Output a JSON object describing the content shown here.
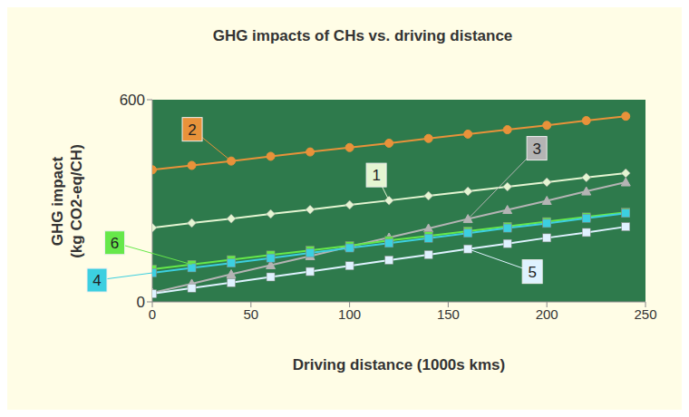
{
  "chart_data": {
    "type": "line",
    "title": "GHG impacts of CHs vs. driving distance",
    "x_label": "Driving distance (1000s kms)",
    "y_label": "GHG impact\n(kg CO2-eq/CH)",
    "x": [
      0,
      20,
      40,
      60,
      80,
      100,
      120,
      140,
      160,
      180,
      200,
      220,
      240
    ],
    "xlim": [
      0,
      250
    ],
    "xticks": [
      0,
      50,
      100,
      150,
      200,
      250
    ],
    "ylim": [
      0,
      600
    ],
    "yticks": [
      0,
      600
    ],
    "grid": false,
    "series": [
      {
        "name": "2",
        "color": "#e8923a",
        "marker": "circle",
        "values": [
          392,
          405,
          418,
          432,
          445,
          458,
          471,
          485,
          498,
          511,
          524,
          538,
          551
        ]
      },
      {
        "name": "1",
        "color": "#e4f5d2",
        "marker": "diamond",
        "values": [
          220,
          234,
          247,
          261,
          274,
          288,
          301,
          315,
          328,
          342,
          355,
          369,
          382
        ]
      },
      {
        "name": "3",
        "color": "#b4b4b4",
        "marker": "triangle",
        "values": [
          27,
          54,
          82,
          109,
          136,
          164,
          191,
          218,
          246,
          273,
          300,
          328,
          355
        ]
      },
      {
        "name": "6",
        "color": "#66e84a",
        "marker": "square",
        "values": [
          97,
          111,
          125,
          139,
          153,
          167,
          182,
          196,
          210,
          224,
          238,
          252,
          266
        ]
      },
      {
        "name": "4",
        "color": "#3ccfe0",
        "marker": "square",
        "values": [
          86,
          101,
          115,
          130,
          145,
          160,
          174,
          189,
          204,
          219,
          233,
          248,
          263
        ]
      },
      {
        "name": "5",
        "color": "#dff2ff",
        "marker": "square",
        "values": [
          24,
          41,
          57,
          74,
          90,
          107,
          124,
          140,
          157,
          173,
          190,
          206,
          223
        ]
      }
    ]
  }
}
